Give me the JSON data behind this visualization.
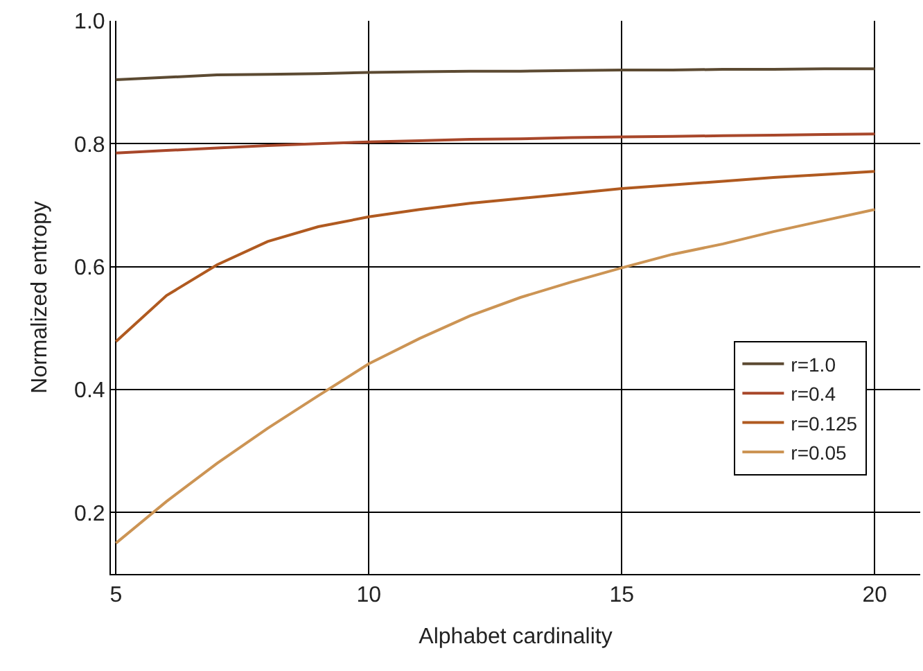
{
  "chart_data": {
    "type": "line",
    "xlabel": "Alphabet cardinality",
    "ylabel": "Normalized entropy",
    "x": [
      5,
      6,
      7,
      8,
      9,
      10,
      11,
      12,
      13,
      14,
      15,
      16,
      17,
      18,
      19,
      20
    ],
    "xlim": [
      4.9,
      20.9
    ],
    "xticks": [
      5,
      10,
      15,
      20
    ],
    "ylim": [
      0.1,
      1.0
    ],
    "yticks": [
      0.2,
      0.4,
      0.6,
      0.8,
      {
        "value": 1,
        "label": "1.0"
      }
    ],
    "grid": true,
    "legend": "right",
    "marker": "none",
    "line_style": "solid",
    "series": [
      {
        "name": "r=1.0",
        "color": "#5c4a32",
        "values": [
          0.904,
          0.908,
          0.912,
          0.913,
          0.914,
          0.916,
          0.917,
          0.918,
          0.918,
          0.919,
          0.92,
          0.92,
          0.921,
          0.921,
          0.922,
          0.922
        ]
      },
      {
        "name": "r=0.4",
        "color": "#a8472a",
        "values": [
          0.785,
          0.789,
          0.793,
          0.797,
          0.8,
          0.803,
          0.805,
          0.807,
          0.808,
          0.81,
          0.811,
          0.812,
          0.813,
          0.814,
          0.815,
          0.816
        ]
      },
      {
        "name": "r=0.125",
        "color": "#b05a20",
        "values": [
          0.478,
          0.553,
          0.603,
          0.641,
          0.665,
          0.681,
          0.693,
          0.703,
          0.711,
          0.719,
          0.727,
          0.733,
          0.739,
          0.745,
          0.75,
          0.755
        ]
      },
      {
        "name": "r=0.05",
        "color": "#cc9454",
        "values": [
          0.15,
          0.218,
          0.28,
          0.337,
          0.39,
          0.442,
          0.483,
          0.52,
          0.55,
          0.575,
          0.598,
          0.62,
          0.637,
          0.657,
          0.675,
          0.693
        ]
      }
    ]
  }
}
